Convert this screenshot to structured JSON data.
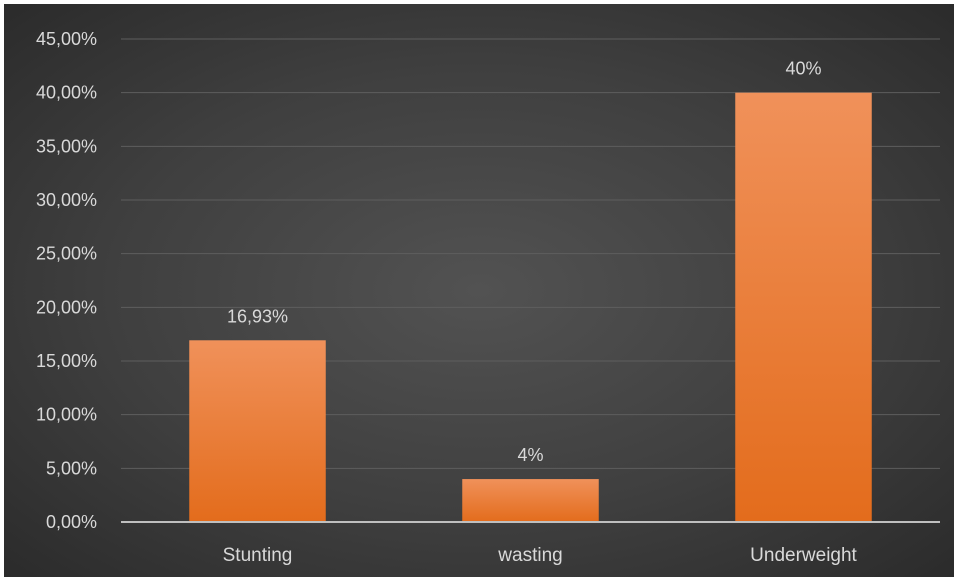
{
  "chart_data": {
    "type": "bar",
    "categories": [
      "Stunting",
      "wasting",
      "Underweight"
    ],
    "values": [
      16.93,
      4,
      40
    ],
    "data_labels": [
      "16,93%",
      "4%",
      "40%"
    ],
    "ylim": [
      0,
      45
    ],
    "y_ticks": [
      0,
      5,
      10,
      15,
      20,
      25,
      30,
      35,
      40,
      45
    ],
    "y_tick_labels": [
      "0,00%",
      "5,00%",
      "10,00%",
      "15,00%",
      "20,00%",
      "25,00%",
      "30,00%",
      "35,00%",
      "40,00%",
      "45,00%"
    ],
    "grid": true,
    "legend": "none",
    "colors": {
      "bar_top": "#f0915a",
      "bar_bottom": "#e36c1c",
      "grid": "#5e5e5e",
      "baseline": "#bfbfbf",
      "text": "#d9d9d9"
    }
  }
}
